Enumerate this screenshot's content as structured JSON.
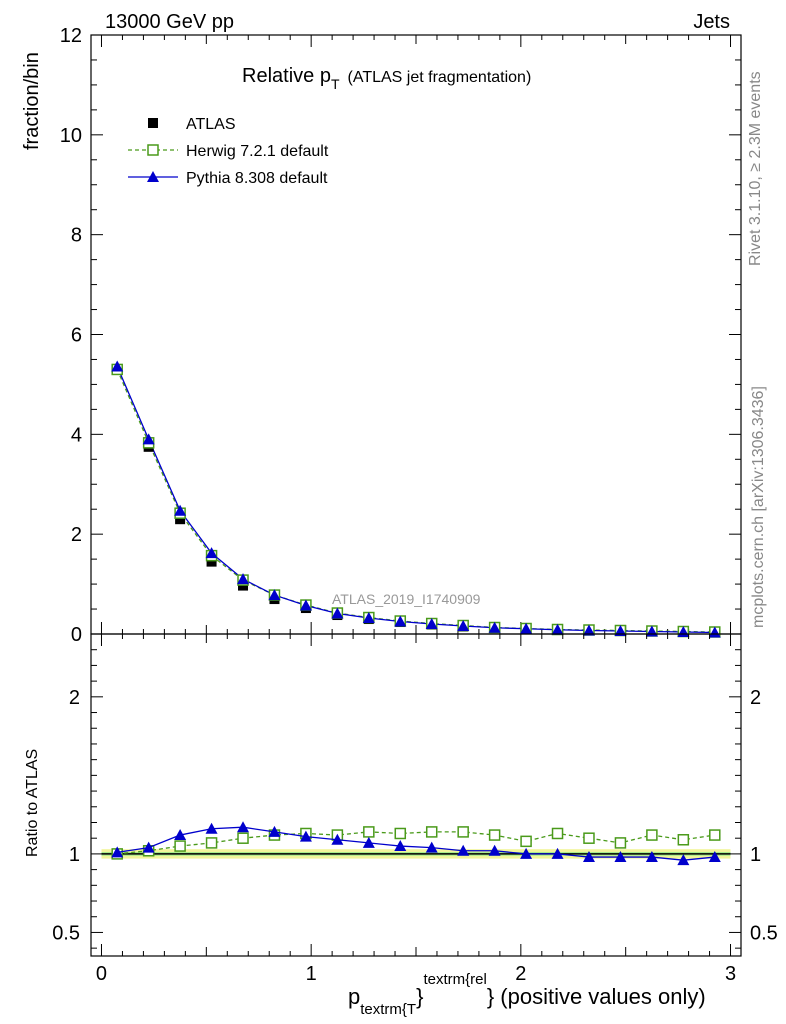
{
  "header": {
    "left": "13000 GeV pp",
    "right": "Jets"
  },
  "side_texts": {
    "rivet": "Rivet 3.1.10, ≥ 2.3M events",
    "mcplots": "mcplots.cern.ch [arXiv:1306.3436]"
  },
  "watermark": "ATLAS_2019_I1740909",
  "chart_data": [
    {
      "type": "line",
      "title_main": "Relative p",
      "title_sub": "T",
      "title_rest": "(ATLAS jet fragmentation)",
      "ylabel": "fraction/bin",
      "xlim": [
        -0.05,
        3.05
      ],
      "ylim": [
        0,
        12
      ],
      "y_ticks": [
        "0",
        "2",
        "4",
        "6",
        "8",
        "10",
        "12"
      ],
      "legend_position": "top-left",
      "x": [
        0.075,
        0.225,
        0.375,
        0.525,
        0.675,
        0.825,
        0.975,
        1.125,
        1.275,
        1.425,
        1.575,
        1.725,
        1.875,
        2.025,
        2.175,
        2.325,
        2.475,
        2.625,
        2.775,
        2.925
      ],
      "series": [
        {
          "name": "ATLAS",
          "style": "marker",
          "marker": "filled-square",
          "color": "#000000",
          "values": [
            5.3,
            3.75,
            2.3,
            1.45,
            0.97,
            0.7,
            0.52,
            0.38,
            0.3,
            0.24,
            0.19,
            0.15,
            0.12,
            0.1,
            0.08,
            0.07,
            0.06,
            0.05,
            0.04,
            0.03
          ]
        },
        {
          "name": "Herwig 7.2.1 default",
          "style": "dashed",
          "marker": "open-square",
          "color": "#4a9a1a",
          "values": [
            5.3,
            3.83,
            2.42,
            1.57,
            1.08,
            0.78,
            0.58,
            0.42,
            0.33,
            0.26,
            0.21,
            0.17,
            0.13,
            0.11,
            0.09,
            0.08,
            0.07,
            0.06,
            0.05,
            0.04
          ]
        },
        {
          "name": "Pythia 8.308 default",
          "style": "solid",
          "marker": "filled-triangle",
          "color": "#0000cc",
          "values": [
            5.36,
            3.9,
            2.47,
            1.62,
            1.1,
            0.78,
            0.57,
            0.41,
            0.32,
            0.25,
            0.2,
            0.16,
            0.125,
            0.105,
            0.085,
            0.07,
            0.06,
            0.05,
            0.04,
            0.03
          ]
        }
      ]
    },
    {
      "type": "line",
      "ylabel": "Ratio to ATLAS",
      "xlabel": "p_{textrm{T}}^{textrm{rel}} (positive values only)",
      "xlabel_base": "p",
      "xlabel_sub": "textrm{T",
      "xlabel_close": "}",
      "xlabel_sup": "textrm{rel",
      "xlabel_rest": "} (positive values only)",
      "xlim": [
        -0.05,
        3.05
      ],
      "ylim": [
        0.35,
        2.4
      ],
      "x_ticks": [
        "0",
        "1",
        "2",
        "3"
      ],
      "y_ticks": [
        "0.5",
        "1",
        "2"
      ],
      "band": {
        "green_halfwidth": 0.012,
        "yellow_halfwidth": 0.03
      },
      "x": [
        0.075,
        0.225,
        0.375,
        0.525,
        0.675,
        0.825,
        0.975,
        1.125,
        1.275,
        1.425,
        1.575,
        1.725,
        1.875,
        2.025,
        2.175,
        2.325,
        2.475,
        2.625,
        2.775,
        2.925
      ],
      "series": [
        {
          "name": "Herwig 7.2.1 default",
          "color": "#4a9a1a",
          "values": [
            1.0,
            1.02,
            1.05,
            1.07,
            1.1,
            1.12,
            1.13,
            1.12,
            1.14,
            1.13,
            1.14,
            1.14,
            1.12,
            1.08,
            1.13,
            1.1,
            1.07,
            1.12,
            1.09,
            1.12
          ]
        },
        {
          "name": "Pythia 8.308 default",
          "color": "#0000cc",
          "values": [
            1.01,
            1.04,
            1.12,
            1.16,
            1.17,
            1.14,
            1.11,
            1.09,
            1.07,
            1.05,
            1.04,
            1.02,
            1.02,
            1.0,
            1.0,
            0.98,
            0.98,
            0.98,
            0.96,
            0.98
          ]
        }
      ]
    }
  ]
}
